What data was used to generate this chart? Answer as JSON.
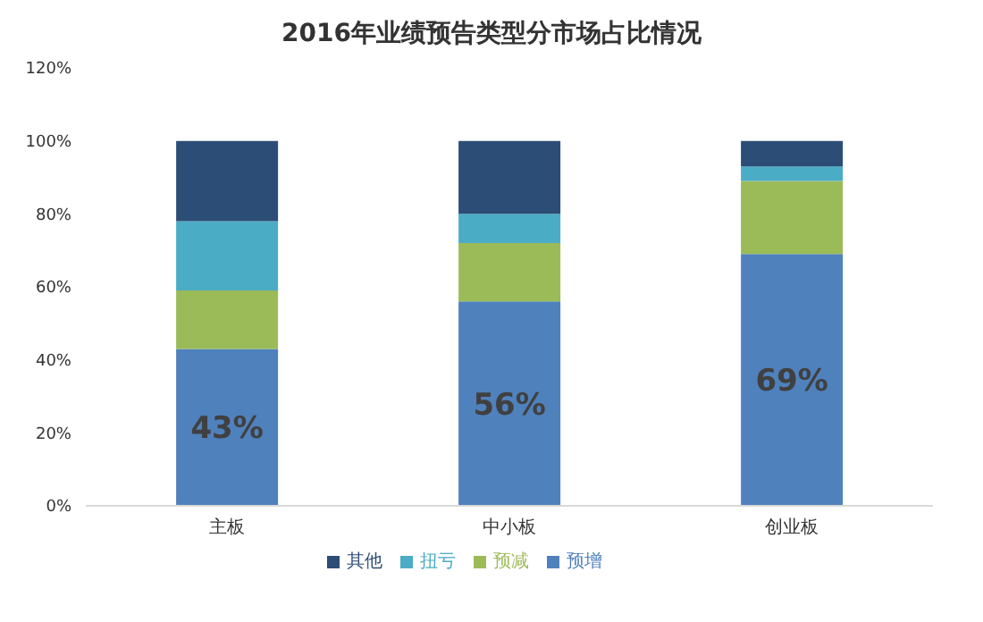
{
  "chart_data": {
    "type": "bar",
    "title": "2016年业绩预告类型分市场占比情况",
    "stacked": true,
    "categories": [
      "主板",
      "中小板",
      "创业板"
    ],
    "series": [
      {
        "name": "预增",
        "color": "#4f81bd",
        "values": [
          43,
          56,
          69
        ],
        "value_labels": [
          "43%",
          "56%",
          "69%"
        ]
      },
      {
        "name": "预减",
        "color": "#9bbb59",
        "values": [
          16,
          16,
          20
        ]
      },
      {
        "name": "扭亏",
        "color": "#4bacc6",
        "values": [
          19,
          8,
          4
        ]
      },
      {
        "name": "其他",
        "color": "#2c4d75",
        "values": [
          22,
          20,
          7
        ]
      }
    ],
    "ylim": [
      0,
      120
    ],
    "yticks": [
      {
        "value": 0,
        "label": "0%"
      },
      {
        "value": 20,
        "label": "20%"
      },
      {
        "value": 40,
        "label": "40%"
      },
      {
        "value": 60,
        "label": "60%"
      },
      {
        "value": 80,
        "label": "80%"
      },
      {
        "value": 100,
        "label": "100%"
      },
      {
        "value": 120,
        "label": "120%"
      }
    ],
    "grid": false,
    "legend": "bottom"
  }
}
